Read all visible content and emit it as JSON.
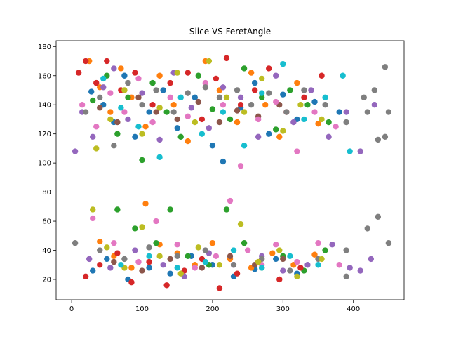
{
  "chart_data": {
    "type": "scatter",
    "title": "Slice VS FeretAngle",
    "xlabel": "",
    "ylabel": "",
    "xlim": [
      -22,
      472
    ],
    "ylim": [
      6,
      184
    ],
    "xticks": [
      0,
      100,
      200,
      300,
      400
    ],
    "yticks": [
      20,
      40,
      60,
      80,
      100,
      120,
      140,
      160,
      180
    ],
    "grid": false,
    "legend": "none",
    "palette": [
      "#1f77b4",
      "#ff7f0e",
      "#2ca02c",
      "#d62728",
      "#9467bd",
      "#8c564b",
      "#e377c2",
      "#7f7f7f",
      "#bcbd22",
      "#17becf"
    ],
    "series": [
      {
        "color": "#1f77b4",
        "points": [
          [
            28,
            149
          ],
          [
            45,
            140
          ],
          [
            60,
            128
          ],
          [
            75,
            160
          ],
          [
            90,
            118
          ],
          [
            110,
            135
          ],
          [
            130,
            150
          ],
          [
            150,
            124
          ],
          [
            175,
            145
          ],
          [
            200,
            112
          ],
          [
            215,
            101
          ],
          [
            240,
            138
          ],
          [
            260,
            155
          ],
          [
            280,
            120
          ],
          [
            300,
            147
          ],
          [
            320,
            130
          ],
          [
            345,
            142
          ],
          [
            380,
            135
          ],
          [
            30,
            26
          ],
          [
            50,
            34
          ],
          [
            80,
            20
          ],
          [
            110,
            28
          ],
          [
            140,
            24
          ],
          [
            170,
            36
          ],
          [
            200,
            30
          ],
          [
            230,
            22
          ],
          [
            260,
            27
          ],
          [
            290,
            34
          ],
          [
            320,
            24
          ]
        ]
      },
      {
        "color": "#ff7f0e",
        "points": [
          [
            25,
            170
          ],
          [
            40,
            152
          ],
          [
            55,
            135
          ],
          [
            70,
            165
          ],
          [
            85,
            145
          ],
          [
            105,
            125
          ],
          [
            125,
            160
          ],
          [
            145,
            140
          ],
          [
            165,
            115
          ],
          [
            190,
            170
          ],
          [
            210,
            150
          ],
          [
            235,
            128
          ],
          [
            255,
            162
          ],
          [
            275,
            140
          ],
          [
            295,
            118
          ],
          [
            320,
            155
          ],
          [
            350,
            127
          ],
          [
            40,
            46
          ],
          [
            60,
            36
          ],
          [
            85,
            28
          ],
          [
            105,
            72
          ],
          [
            125,
            44
          ],
          [
            150,
            38
          ],
          [
            175,
            30
          ],
          [
            200,
            45
          ],
          [
            225,
            34
          ],
          [
            255,
            28
          ],
          [
            285,
            38
          ],
          [
            315,
            30
          ],
          [
            345,
            37
          ]
        ]
      },
      {
        "color": "#2ca02c",
        "points": [
          [
            30,
            143
          ],
          [
            50,
            160
          ],
          [
            65,
            120
          ],
          [
            80,
            145
          ],
          [
            100,
            102
          ],
          [
            115,
            155
          ],
          [
            135,
            135
          ],
          [
            155,
            118
          ],
          [
            180,
            160
          ],
          [
            200,
            137
          ],
          [
            225,
            130
          ],
          [
            245,
            165
          ],
          [
            270,
            145
          ],
          [
            290,
            123
          ],
          [
            310,
            150
          ],
          [
            335,
            140
          ],
          [
            365,
            128
          ],
          [
            65,
            68
          ],
          [
            90,
            55
          ],
          [
            120,
            45
          ],
          [
            140,
            68
          ],
          [
            165,
            36
          ],
          [
            195,
            30
          ],
          [
            220,
            68
          ],
          [
            245,
            45
          ],
          [
            270,
            28
          ],
          [
            300,
            36
          ],
          [
            330,
            26
          ],
          [
            360,
            40
          ]
        ]
      },
      {
        "color": "#d62728",
        "points": [
          [
            10,
            162
          ],
          [
            20,
            170
          ],
          [
            35,
            155
          ],
          [
            50,
            170
          ],
          [
            70,
            150
          ],
          [
            90,
            162
          ],
          [
            115,
            140
          ],
          [
            140,
            155
          ],
          [
            165,
            162
          ],
          [
            185,
            130
          ],
          [
            205,
            158
          ],
          [
            220,
            172
          ],
          [
            240,
            140
          ],
          [
            260,
            150
          ],
          [
            280,
            165
          ],
          [
            305,
            135
          ],
          [
            330,
            145
          ],
          [
            355,
            160
          ],
          [
            20,
            22
          ],
          [
            40,
            30
          ],
          [
            65,
            38
          ],
          [
            85,
            18
          ],
          [
            110,
            32
          ],
          [
            135,
            16
          ],
          [
            160,
            26
          ],
          [
            185,
            34
          ],
          [
            210,
            14
          ],
          [
            235,
            24
          ],
          [
            265,
            32
          ],
          [
            295,
            20
          ],
          [
            325,
            28
          ]
        ]
      },
      {
        "color": "#9467bd",
        "points": [
          [
            5,
            108
          ],
          [
            15,
            135
          ],
          [
            30,
            118
          ],
          [
            45,
            152
          ],
          [
            60,
            165
          ],
          [
            80,
            130
          ],
          [
            100,
            148
          ],
          [
            125,
            116
          ],
          [
            145,
            162
          ],
          [
            170,
            138
          ],
          [
            195,
            124
          ],
          [
            215,
            152
          ],
          [
            240,
            145
          ],
          [
            265,
            118
          ],
          [
            290,
            160
          ],
          [
            315,
            128
          ],
          [
            340,
            150
          ],
          [
            365,
            118
          ],
          [
            390,
            135
          ],
          [
            410,
            108
          ],
          [
            430,
            140
          ],
          [
            25,
            34
          ],
          [
            55,
            28
          ],
          [
            90,
            40
          ],
          [
            130,
            30
          ],
          [
            160,
            22
          ],
          [
            195,
            38
          ],
          [
            230,
            30
          ],
          [
            270,
            36
          ],
          [
            300,
            26
          ],
          [
            335,
            30
          ],
          [
            370,
            44
          ],
          [
            395,
            28
          ],
          [
            410,
            26
          ],
          [
            425,
            34
          ]
        ]
      },
      {
        "color": "#8c564b",
        "points": [
          [
            40,
            138
          ],
          [
            65,
            128
          ],
          [
            95,
            145
          ],
          [
            120,
            135
          ],
          [
            150,
            130
          ],
          [
            180,
            142
          ],
          [
            210,
            128
          ],
          [
            235,
            136
          ],
          [
            265,
            132
          ],
          [
            295,
            140
          ],
          [
            60,
            32
          ],
          [
            100,
            26
          ],
          [
            140,
            34
          ],
          [
            185,
            28
          ],
          [
            225,
            36
          ],
          [
            260,
            30
          ],
          [
            300,
            34
          ]
        ]
      },
      {
        "color": "#e377c2",
        "points": [
          [
            15,
            140
          ],
          [
            35,
            125
          ],
          [
            55,
            148
          ],
          [
            75,
            135
          ],
          [
            95,
            158
          ],
          [
            115,
            128
          ],
          [
            140,
            145
          ],
          [
            165,
            132
          ],
          [
            190,
            155
          ],
          [
            215,
            140
          ],
          [
            240,
            98
          ],
          [
            265,
            130
          ],
          [
            290,
            142
          ],
          [
            320,
            108
          ],
          [
            345,
            135
          ],
          [
            375,
            125
          ],
          [
            30,
            62
          ],
          [
            60,
            45
          ],
          [
            95,
            32
          ],
          [
            120,
            60
          ],
          [
            150,
            44
          ],
          [
            175,
            28
          ],
          [
            205,
            36
          ],
          [
            225,
            74
          ],
          [
            250,
            40
          ],
          [
            270,
            30
          ],
          [
            290,
            44
          ],
          [
            320,
            32
          ],
          [
            350,
            45
          ],
          [
            380,
            30
          ]
        ]
      },
      {
        "color": "#7f7f7f",
        "points": [
          [
            20,
            135
          ],
          [
            40,
            145
          ],
          [
            60,
            112
          ],
          [
            80,
            155
          ],
          [
            100,
            140
          ],
          [
            120,
            150
          ],
          [
            145,
            135
          ],
          [
            165,
            148
          ],
          [
            190,
            152
          ],
          [
            210,
            145
          ],
          [
            235,
            150
          ],
          [
            255,
            140
          ],
          [
            280,
            148
          ],
          [
            305,
            135
          ],
          [
            330,
            150
          ],
          [
            360,
            140
          ],
          [
            390,
            128
          ],
          [
            415,
            145
          ],
          [
            430,
            150
          ],
          [
            445,
            166
          ],
          [
            435,
            116
          ],
          [
            420,
            135
          ],
          [
            445,
            118
          ],
          [
            450,
            135
          ],
          [
            5,
            45
          ],
          [
            40,
            40
          ],
          [
            75,
            34
          ],
          [
            110,
            42
          ],
          [
            150,
            36
          ],
          [
            190,
            40
          ],
          [
            230,
            30
          ],
          [
            270,
            34
          ],
          [
            310,
            26
          ],
          [
            350,
            34
          ],
          [
            390,
            40
          ],
          [
            420,
            55
          ],
          [
            435,
            63
          ],
          [
            450,
            45
          ],
          [
            390,
            22
          ]
        ]
      },
      {
        "color": "#bcbd22",
        "points": [
          [
            35,
            110
          ],
          [
            55,
            130
          ],
          [
            75,
            150
          ],
          [
            100,
            120
          ],
          [
            125,
            138
          ],
          [
            150,
            162
          ],
          [
            175,
            128
          ],
          [
            195,
            170
          ],
          [
            220,
            145
          ],
          [
            245,
            135
          ],
          [
            270,
            158
          ],
          [
            300,
            122
          ],
          [
            325,
            140
          ],
          [
            355,
            130
          ],
          [
            30,
            68
          ],
          [
            50,
            42
          ],
          [
            75,
            28
          ],
          [
            100,
            56
          ],
          [
            125,
            36
          ],
          [
            155,
            24
          ],
          [
            180,
            42
          ],
          [
            210,
            30
          ],
          [
            240,
            58
          ],
          [
            265,
            32
          ],
          [
            295,
            40
          ],
          [
            320,
            22
          ],
          [
            355,
            34
          ]
        ]
      },
      {
        "color": "#17becf",
        "points": [
          [
            45,
            158
          ],
          [
            70,
            138
          ],
          [
            95,
            125
          ],
          [
            125,
            104
          ],
          [
            155,
            145
          ],
          [
            185,
            120
          ],
          [
            215,
            135
          ],
          [
            245,
            112
          ],
          [
            270,
            148
          ],
          [
            300,
            168
          ],
          [
            330,
            130
          ],
          [
            360,
            145
          ],
          [
            385,
            160
          ],
          [
            395,
            108
          ],
          [
            70,
            30
          ],
          [
            110,
            36
          ],
          [
            150,
            28
          ],
          [
            190,
            32
          ],
          [
            230,
            40
          ],
          [
            270,
            28
          ],
          [
            310,
            36
          ],
          [
            350,
            30
          ]
        ]
      }
    ]
  }
}
